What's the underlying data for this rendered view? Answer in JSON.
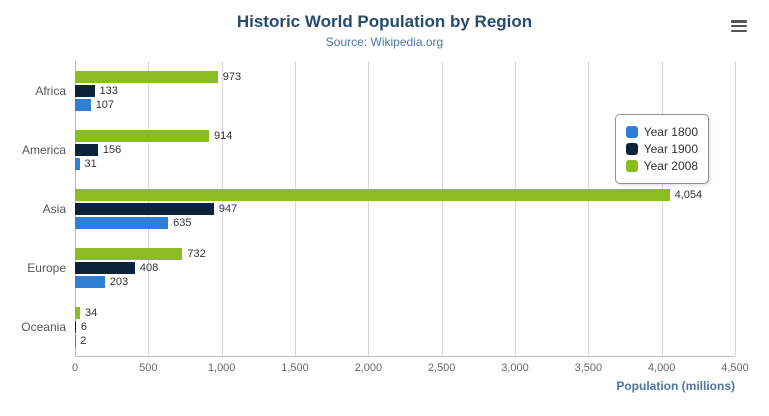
{
  "header": {
    "title": "Historic World Population by Region",
    "subtitle": "Source: Wikipedia.org"
  },
  "menu": {
    "icon": "hamburger-icon"
  },
  "chart_data": {
    "type": "bar",
    "orientation": "horizontal",
    "title": "Historic World Population by Region",
    "subtitle": "Source: Wikipedia.org",
    "categories": [
      "Africa",
      "America",
      "Asia",
      "Europe",
      "Oceania"
    ],
    "series": [
      {
        "name": "Year 1800",
        "color": "#2f7ed8",
        "values": [
          107,
          31,
          635,
          203,
          2
        ]
      },
      {
        "name": "Year 1900",
        "color": "#0d233a",
        "values": [
          133,
          156,
          947,
          408,
          6
        ]
      },
      {
        "name": "Year 2008",
        "color": "#8bbc21",
        "values": [
          973,
          914,
          4054,
          732,
          34
        ]
      }
    ],
    "bar_display_order_top_to_bottom": [
      "Year 2008",
      "Year 1900",
      "Year 1800"
    ],
    "xlabel": "Population (millions)",
    "ylabel": "",
    "xlim": [
      0,
      4500
    ],
    "x_ticks": [
      0,
      500,
      1000,
      1500,
      2000,
      2500,
      3000,
      3500,
      4000,
      4500
    ],
    "x_tick_labels": [
      "0",
      "500",
      "1,000",
      "1,500",
      "2,000",
      "2,500",
      "3,000",
      "3,500",
      "4,000",
      "4,500"
    ],
    "grid": true,
    "legend_position": "right"
  }
}
